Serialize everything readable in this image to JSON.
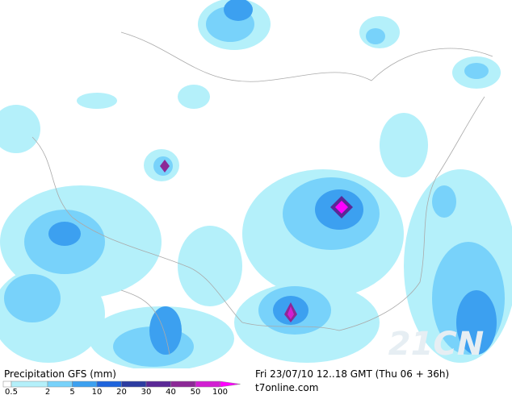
{
  "legend": {
    "title": "Precipitation GFS (mm)",
    "levels": [
      0.5,
      2,
      5,
      10,
      20,
      30,
      40,
      50,
      100
    ],
    "colors": [
      "#ffffff",
      "#b4f0fa",
      "#78d2fa",
      "#3ca0f0",
      "#1e64dc",
      "#2c3ca0",
      "#5a2896",
      "#8c2896",
      "#d21ed2",
      "#ff00ff"
    ]
  },
  "caption": {
    "run": "Fri 23/07/10 12..18 GMT (Thu 06 + 36h)",
    "source": "t7online.com"
  },
  "watermark": "21CN"
}
